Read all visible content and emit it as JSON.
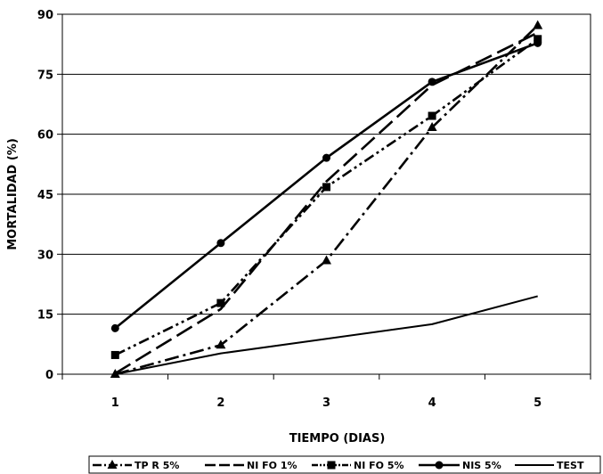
{
  "chart_data": {
    "type": "line",
    "title": "",
    "xlabel": "TIEMPO (DIAS)",
    "ylabel": "MORTALIDAD (%)",
    "x": [
      1,
      2,
      3,
      4,
      5
    ],
    "x_tick_labels": [
      "1",
      "2",
      "3",
      "4",
      "5"
    ],
    "ylim": [
      0,
      90
    ],
    "y_ticks": [
      0,
      15,
      30,
      45,
      60,
      75,
      90
    ],
    "y_tick_labels": [
      "0",
      "15",
      "30",
      "45",
      "60",
      "75",
      "90"
    ],
    "grid": "horizontal",
    "legend_position": "bottom",
    "series": [
      {
        "name": "TP R 5%",
        "values": [
          0,
          7.3,
          28.4,
          61.7,
          87.2
        ],
        "marker": "triangle",
        "dash": "dash-dot"
      },
      {
        "name": "NI FO 1%",
        "values": [
          0.2,
          16.3,
          48.2,
          72.3,
          85.4
        ],
        "marker": "none",
        "dash": "long-dash"
      },
      {
        "name": "NI FO 5%",
        "values": [
          4.8,
          17.8,
          46.8,
          64.6,
          83.8
        ],
        "marker": "square",
        "dash": "dash-dot-dot"
      },
      {
        "name": "NIS 5%",
        "values": [
          11.5,
          32.8,
          54.1,
          73.1,
          82.8
        ],
        "marker": "circle",
        "dash": "solid"
      },
      {
        "name": "TEST",
        "values": [
          0,
          5.2,
          null,
          12.5,
          19.5
        ],
        "marker": "none",
        "dash": "solid-thin"
      }
    ]
  }
}
